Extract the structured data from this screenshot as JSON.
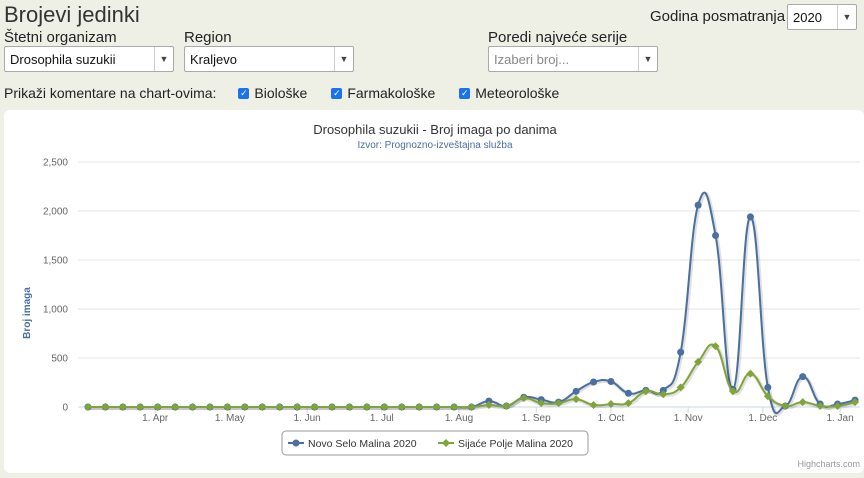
{
  "header": {
    "title": "Brojevi jedinki"
  },
  "year": {
    "label": "Godina posmatranja",
    "value": "2020"
  },
  "organism": {
    "label": "Štetni organizam",
    "value": "Drosophila suzukii"
  },
  "region": {
    "label": "Region",
    "value": "Kraljevo"
  },
  "compare": {
    "label": "Poredi najveće serije",
    "placeholder": "Izaberi broj..."
  },
  "comments": {
    "label": "Prikaži komentare na chart-ovima:",
    "options": [
      {
        "label": "Biološke",
        "checked": true
      },
      {
        "label": "Farmakološke",
        "checked": true
      },
      {
        "label": "Meteorološke",
        "checked": true
      }
    ]
  },
  "credits": "Highcharts.com",
  "chart_data": {
    "type": "line",
    "title": "Drosophila suzukii - Broj imaga po danima",
    "subtitle": "Izvor: Prognozno-izveštajna služba",
    "ylabel": "Broj imaga",
    "xlabel": "",
    "ylim": [
      0,
      2500
    ],
    "yticks": [
      "0",
      "500",
      "1,000",
      "1,500",
      "2,000",
      "2,500"
    ],
    "xticks": [
      "1. Apr",
      "1. May",
      "1. Jun",
      "1. Jul",
      "1. Aug",
      "1. Sep",
      "1. Oct",
      "1. Nov",
      "1. Dec",
      "1. Jan"
    ],
    "grid": true,
    "legend_position": "bottom-center",
    "series": [
      {
        "name": "Novo Selo Malina 2020",
        "color": "#4a6fa0",
        "points": [
          [
            "2020-03-05",
            0
          ],
          [
            "2020-03-12",
            0
          ],
          [
            "2020-03-19",
            0
          ],
          [
            "2020-03-26",
            0
          ],
          [
            "2020-04-02",
            0
          ],
          [
            "2020-04-09",
            0
          ],
          [
            "2020-04-16",
            0
          ],
          [
            "2020-04-23",
            0
          ],
          [
            "2020-04-30",
            0
          ],
          [
            "2020-05-07",
            0
          ],
          [
            "2020-05-14",
            0
          ],
          [
            "2020-05-21",
            0
          ],
          [
            "2020-05-28",
            0
          ],
          [
            "2020-06-04",
            0
          ],
          [
            "2020-06-11",
            0
          ],
          [
            "2020-06-18",
            0
          ],
          [
            "2020-06-25",
            0
          ],
          [
            "2020-07-02",
            0
          ],
          [
            "2020-07-09",
            0
          ],
          [
            "2020-07-16",
            0
          ],
          [
            "2020-07-23",
            0
          ],
          [
            "2020-07-30",
            0
          ],
          [
            "2020-08-06",
            0
          ],
          [
            "2020-08-13",
            60
          ],
          [
            "2020-08-20",
            10
          ],
          [
            "2020-08-27",
            100
          ],
          [
            "2020-09-03",
            75
          ],
          [
            "2020-09-10",
            50
          ],
          [
            "2020-09-17",
            160
          ],
          [
            "2020-09-24",
            255
          ],
          [
            "2020-10-01",
            260
          ],
          [
            "2020-10-08",
            140
          ],
          [
            "2020-10-15",
            170
          ],
          [
            "2020-10-22",
            170
          ],
          [
            "2020-10-29",
            560
          ],
          [
            "2020-11-05",
            2060
          ],
          [
            "2020-11-12",
            1750
          ],
          [
            "2020-11-19",
            180
          ],
          [
            "2020-11-26",
            1940
          ],
          [
            "2020-12-03",
            200
          ],
          [
            "2020-12-10",
            10
          ],
          [
            "2020-12-17",
            310
          ],
          [
            "2020-12-24",
            30
          ],
          [
            "2020-12-31",
            30
          ],
          [
            "2021-01-07",
            70
          ]
        ]
      },
      {
        "name": "Sijaće Polje Malina 2020",
        "color": "#7fa53a",
        "points": [
          [
            "2020-03-05",
            0
          ],
          [
            "2020-03-12",
            0
          ],
          [
            "2020-03-19",
            0
          ],
          [
            "2020-03-26",
            0
          ],
          [
            "2020-04-02",
            0
          ],
          [
            "2020-04-09",
            0
          ],
          [
            "2020-04-16",
            0
          ],
          [
            "2020-04-23",
            0
          ],
          [
            "2020-04-30",
            0
          ],
          [
            "2020-05-07",
            0
          ],
          [
            "2020-05-14",
            0
          ],
          [
            "2020-05-21",
            0
          ],
          [
            "2020-05-28",
            0
          ],
          [
            "2020-06-04",
            0
          ],
          [
            "2020-06-11",
            0
          ],
          [
            "2020-06-18",
            0
          ],
          [
            "2020-06-25",
            0
          ],
          [
            "2020-07-02",
            0
          ],
          [
            "2020-07-09",
            0
          ],
          [
            "2020-07-16",
            0
          ],
          [
            "2020-07-23",
            0
          ],
          [
            "2020-07-30",
            0
          ],
          [
            "2020-08-06",
            0
          ],
          [
            "2020-08-13",
            20
          ],
          [
            "2020-08-20",
            10
          ],
          [
            "2020-08-27",
            90
          ],
          [
            "2020-09-03",
            40
          ],
          [
            "2020-09-10",
            40
          ],
          [
            "2020-09-17",
            80
          ],
          [
            "2020-09-24",
            20
          ],
          [
            "2020-10-01",
            30
          ],
          [
            "2020-10-08",
            40
          ],
          [
            "2020-10-15",
            160
          ],
          [
            "2020-10-22",
            130
          ],
          [
            "2020-10-29",
            200
          ],
          [
            "2020-11-05",
            460
          ],
          [
            "2020-11-12",
            620
          ],
          [
            "2020-11-19",
            160
          ],
          [
            "2020-11-26",
            340
          ],
          [
            "2020-12-03",
            110
          ],
          [
            "2020-12-10",
            10
          ],
          [
            "2020-12-17",
            50
          ],
          [
            "2020-12-24",
            10
          ],
          [
            "2020-12-31",
            10
          ],
          [
            "2021-01-07",
            50
          ]
        ]
      }
    ]
  }
}
